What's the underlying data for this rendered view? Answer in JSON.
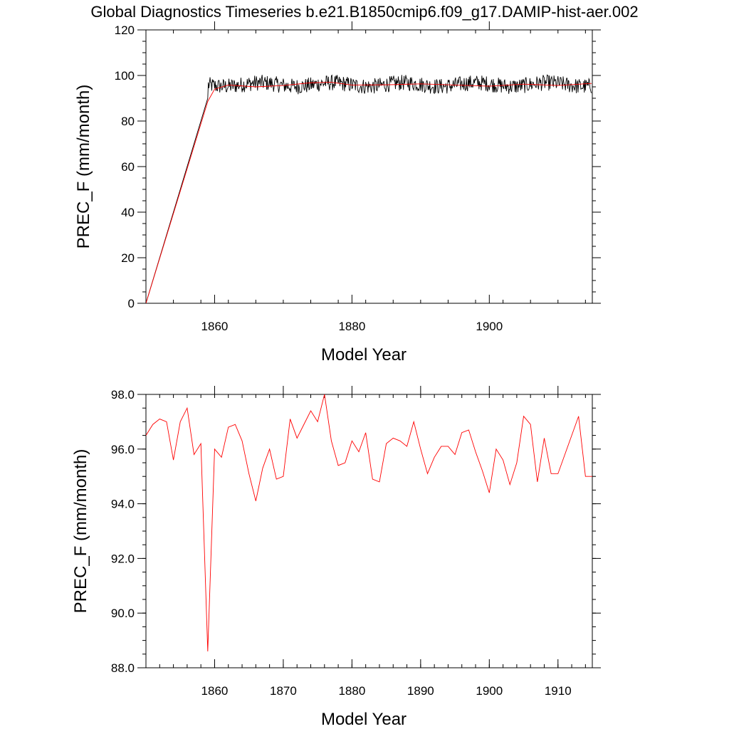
{
  "title": "Global Diagnostics Timeseries b.e21.B1850cmip6.f09_g17.DAMIP-hist-aer.002",
  "colors": {
    "monthly": "#000000",
    "annual": "#ff0000",
    "axes": "#000000"
  },
  "chart_data": [
    {
      "type": "line",
      "xlabel": "Model Year",
      "ylabel": "PREC_F (mm/month)",
      "xlim": [
        1850,
        1915
      ],
      "ylim": [
        0,
        120
      ],
      "x_ticks": [
        1860,
        1880,
        1900
      ],
      "y_ticks": [
        0,
        20,
        40,
        60,
        80,
        100,
        120
      ],
      "x_tick_labels": [
        "1860",
        "1880",
        "1900"
      ],
      "y_tick_labels": [
        "0",
        "20",
        "40",
        "60",
        "80",
        "100",
        "120"
      ],
      "series": [
        {
          "role": "monthly",
          "color": "#000000",
          "x": [
            1850.0,
            1859.0
          ],
          "y": [
            0.0,
            90.0
          ],
          "continuation": {
            "x_start": 1859.0,
            "x_end": 1914.9,
            "mean": 96.0,
            "range": [
              88.0,
              103.0
            ]
          }
        },
        {
          "role": "annual",
          "color": "#ff0000",
          "x": [
            1850.0,
            1859.0,
            1860.0,
            1862.0,
            1866.0,
            1870.0,
            1874.0,
            1877.0,
            1880.0,
            1885.0,
            1890.0,
            1895.0,
            1900.0,
            1905.0,
            1910.0,
            1914.9
          ],
          "y": [
            0.0,
            88.6,
            94.0,
            95.8,
            95.0,
            95.6,
            96.8,
            97.0,
            95.8,
            95.9,
            96.3,
            95.8,
            95.3,
            96.2,
            95.6,
            96.5
          ]
        }
      ]
    },
    {
      "type": "line",
      "xlabel": "Model Year",
      "ylabel": "PREC_F (mm/month)",
      "xlim": [
        1850,
        1915
      ],
      "ylim": [
        88,
        98
      ],
      "x_ticks": [
        1860,
        1870,
        1880,
        1890,
        1900,
        1910
      ],
      "y_ticks": [
        88,
        90,
        92,
        94,
        96,
        98
      ],
      "x_tick_labels": [
        "1860",
        "1870",
        "1880",
        "1890",
        "1900",
        "1910"
      ],
      "y_tick_labels": [
        "88.0",
        "90.0",
        "92.0",
        "94.0",
        "96.0",
        "98.0"
      ],
      "series": [
        {
          "role": "annual",
          "color": "#ff0000",
          "x": [
            1850.0,
            1851.0,
            1852.0,
            1853.0,
            1854.0,
            1855.0,
            1856.0,
            1857.0,
            1858.0,
            1859.0,
            1860.0,
            1861.0,
            1862.0,
            1863.0,
            1864.0,
            1865.0,
            1866.0,
            1867.0,
            1868.0,
            1869.0,
            1870.0,
            1871.0,
            1872.0,
            1873.0,
            1874.0,
            1875.0,
            1876.0,
            1877.0,
            1878.0,
            1879.0,
            1880.0,
            1881.0,
            1882.0,
            1883.0,
            1884.0,
            1885.0,
            1886.0,
            1887.0,
            1888.0,
            1889.0,
            1890.0,
            1891.0,
            1892.0,
            1893.0,
            1894.0,
            1895.0,
            1896.0,
            1897.0,
            1898.0,
            1899.0,
            1900.0,
            1901.0,
            1902.0,
            1903.0,
            1904.0,
            1905.0,
            1906.0,
            1907.0,
            1908.0,
            1909.0,
            1910.0,
            1911.0,
            1912.0,
            1913.0,
            1914.0,
            1915.0
          ],
          "y": [
            96.5,
            96.9,
            97.1,
            97.0,
            95.6,
            97.0,
            97.5,
            95.8,
            96.2,
            88.6,
            96.0,
            95.7,
            96.8,
            96.9,
            96.3,
            95.1,
            94.1,
            95.3,
            96.0,
            94.9,
            95.0,
            97.1,
            96.4,
            96.9,
            97.4,
            97.0,
            98.0,
            96.3,
            95.4,
            95.5,
            96.3,
            95.9,
            96.6,
            94.9,
            94.8,
            96.2,
            96.4,
            96.3,
            96.1,
            97.0,
            96.0,
            95.1,
            95.7,
            96.1,
            96.1,
            95.8,
            96.6,
            96.7,
            95.9,
            95.2,
            94.4,
            96.0,
            95.6,
            94.7,
            95.5,
            97.2,
            96.9,
            94.8,
            96.4,
            95.1,
            95.1,
            95.8,
            96.5,
            97.2,
            95.0,
            95.0
          ]
        }
      ]
    }
  ]
}
